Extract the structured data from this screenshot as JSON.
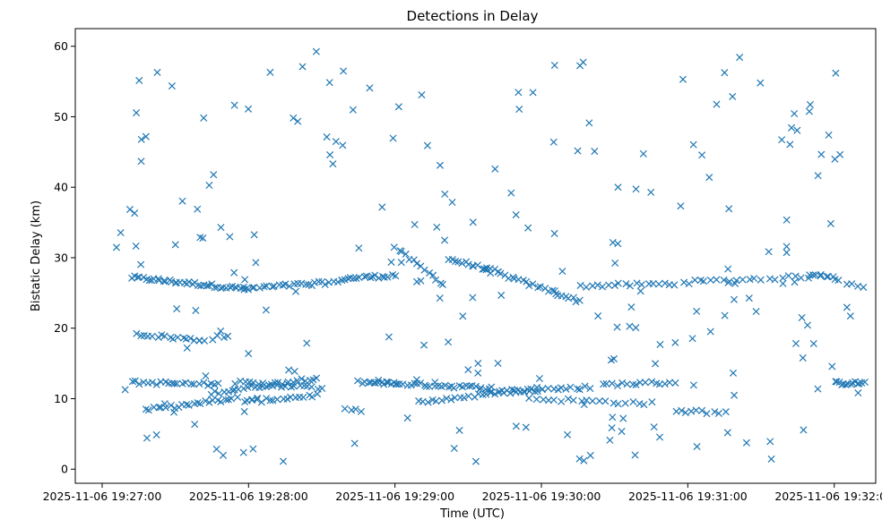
{
  "chart_data": {
    "type": "scatter",
    "title": "Detections in Delay",
    "xlabel": "Time (UTC)",
    "ylabel": "Bistatic Delay (km)",
    "marker": "x",
    "color": "#1f77b4",
    "grid": false,
    "x_start": "2025-11-06 19:27:00",
    "xlim": [
      "2025-11-06 19:26:49",
      "2025-11-06 19:32:17"
    ],
    "ylim": [
      -2.0,
      62.5
    ],
    "x_ticks": [
      "2025-11-06 19:27:00",
      "2025-11-06 19:28:00",
      "2025-11-06 19:29:00",
      "2025-11-06 19:30:00",
      "2025-11-06 19:31:00",
      "2025-11-06 19:32:00"
    ],
    "y_ticks": [
      0,
      10,
      20,
      30,
      40,
      50,
      60
    ],
    "tracks": [
      {
        "t0": 12,
        "t1": 58,
        "y0": 27.2,
        "y1": 25.6,
        "n": 40
      },
      {
        "t0": 58,
        "t1": 98,
        "y0": 25.6,
        "y1": 26.6,
        "n": 26
      },
      {
        "t0": 98,
        "t1": 120,
        "y0": 27.0,
        "y1": 27.5,
        "n": 18
      },
      {
        "t0": 120,
        "t1": 140,
        "y0": 31.5,
        "y1": 26.2,
        "n": 14
      },
      {
        "t0": 142,
        "t1": 162,
        "y0": 29.8,
        "y1": 28.0,
        "n": 16
      },
      {
        "t0": 162,
        "t1": 196,
        "y0": 27.8,
        "y1": 23.8,
        "n": 24
      },
      {
        "t0": 196,
        "t1": 235,
        "y0": 26.0,
        "y1": 26.3,
        "n": 18
      },
      {
        "t0": 238,
        "t1": 300,
        "y0": 26.5,
        "y1": 27.5,
        "n": 24
      },
      {
        "t0": 14,
        "t1": 40,
        "y0": 19.2,
        "y1": 18.3,
        "n": 16
      },
      {
        "t0": 40,
        "t1": 52,
        "y0": 18.3,
        "y1": 19.0,
        "n": 6
      },
      {
        "t0": 12,
        "t1": 48,
        "y0": 12.3,
        "y1": 12.0,
        "n": 22
      },
      {
        "t0": 45,
        "t1": 88,
        "y0": 10.8,
        "y1": 13.0,
        "n": 28
      },
      {
        "t0": 55,
        "t1": 90,
        "y0": 12.3,
        "y1": 11.5,
        "n": 20
      },
      {
        "t0": 58,
        "t1": 88,
        "y0": 9.5,
        "y1": 10.5,
        "n": 18
      },
      {
        "t0": 18,
        "t1": 55,
        "y0": 8.4,
        "y1": 10.0,
        "n": 24
      },
      {
        "t0": 105,
        "t1": 160,
        "y0": 12.4,
        "y1": 11.5,
        "n": 40
      },
      {
        "t0": 130,
        "t1": 180,
        "y0": 9.5,
        "y1": 11.5,
        "n": 28
      },
      {
        "t0": 160,
        "t1": 200,
        "y0": 11.0,
        "y1": 11.6,
        "n": 22
      },
      {
        "t0": 175,
        "t1": 225,
        "y0": 10.0,
        "y1": 9.3,
        "n": 20
      },
      {
        "t0": 205,
        "t1": 235,
        "y0": 12.0,
        "y1": 12.3,
        "n": 16
      },
      {
        "t0": 235,
        "t1": 255,
        "y0": 8.3,
        "y1": 8.0,
        "n": 10
      },
      {
        "t0": 300,
        "t1": 312,
        "y0": 12.2,
        "y1": 12.2,
        "n": 14
      },
      {
        "t0": 290,
        "t1": 312,
        "y0": 27.7,
        "y1": 25.8,
        "n": 10
      },
      {
        "t0": 112,
        "t1": 120,
        "y0": 12.5,
        "y1": 12.0,
        "n": 6
      },
      {
        "t0": 100,
        "t1": 106,
        "y0": 8.5,
        "y1": 8.2,
        "n": 4
      }
    ],
    "random_points": 220
  }
}
